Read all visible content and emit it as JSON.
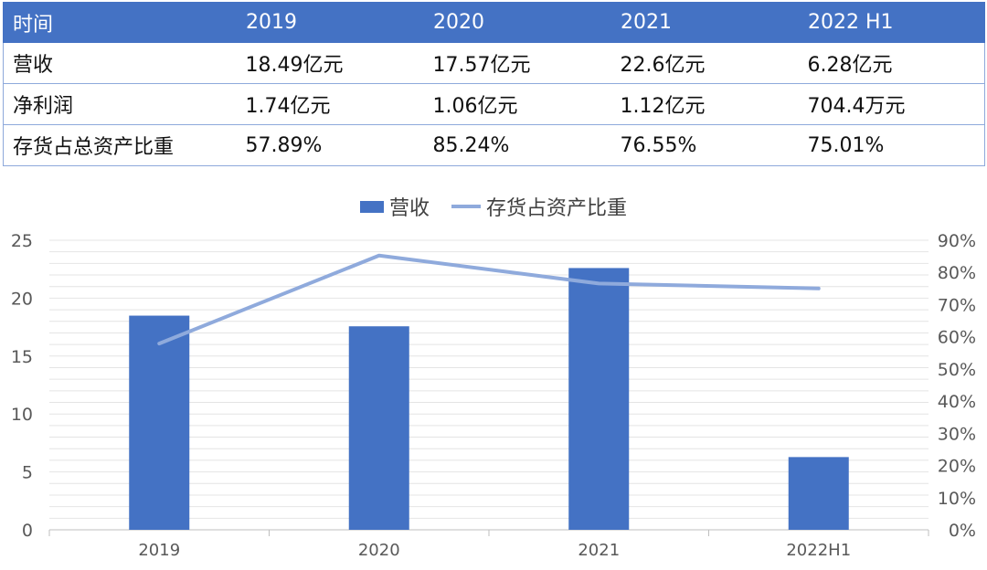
{
  "table": {
    "header": [
      "时间",
      "2019",
      "2020",
      "2021",
      "2022 H1"
    ],
    "rows": [
      [
        "营收",
        "18.49亿元",
        "17.57亿元",
        "22.6亿元",
        "6.28亿元"
      ],
      [
        "净利润",
        "1.74亿元",
        "1.06亿元",
        "1.12亿元",
        "704.4万元"
      ],
      [
        "存货占总资产比重",
        "57.89%",
        "85.24%",
        "76.55%",
        "75.01%"
      ]
    ]
  },
  "chart_data": {
    "type": "bar",
    "categories": [
      "2019",
      "2020",
      "2021",
      "2022H1"
    ],
    "series": [
      {
        "name": "营收",
        "type": "bar",
        "axis": "left",
        "values": [
          18.49,
          17.57,
          22.6,
          6.28
        ],
        "color": "#4472c4"
      },
      {
        "name": "存货占资产比重",
        "type": "line",
        "axis": "right",
        "values": [
          57.89,
          85.24,
          76.55,
          75.01
        ],
        "color": "#8faadc"
      }
    ],
    "y_left": {
      "min": 0,
      "max": 25,
      "ticks": [
        "0",
        "5",
        "10",
        "15",
        "20",
        "25"
      ]
    },
    "y_right": {
      "min": 0,
      "max": 90,
      "ticks": [
        "0%",
        "10%",
        "20%",
        "30%",
        "40%",
        "50%",
        "60%",
        "70%",
        "80%",
        "90%"
      ]
    },
    "grid": true,
    "legend_position": "top"
  }
}
